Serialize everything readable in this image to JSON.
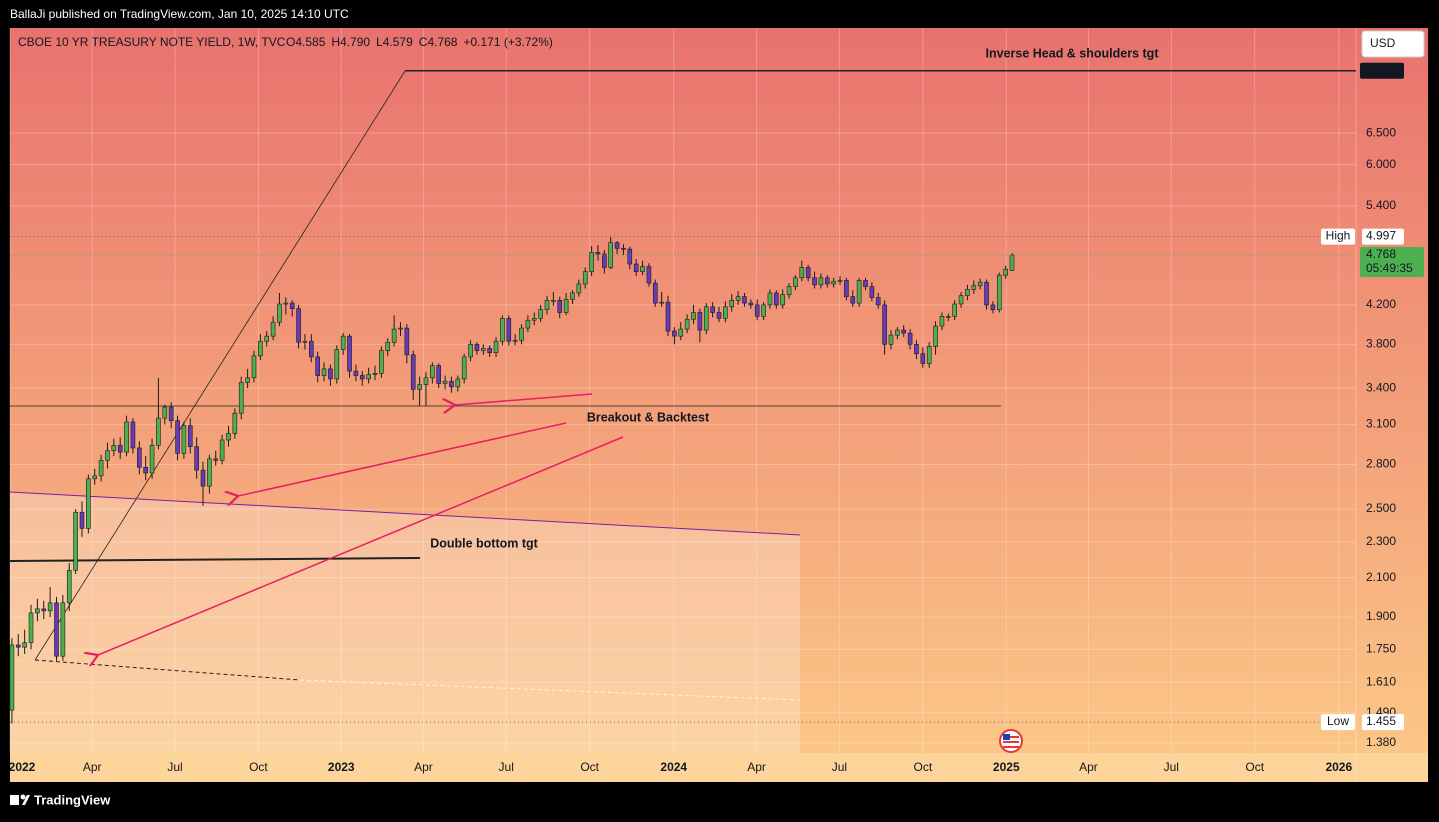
{
  "header": {
    "published": "BallaJi published on TradingView.com, Jan 10, 2025 14:10 UTC"
  },
  "chart_data": {
    "type": "candlestick",
    "title": "CBOE 10 YR TREASURY NOTE YIELD, 1W, TVC",
    "ohlc_text": [
      "O4.585",
      "H4.790",
      "L4.579",
      "C4.768",
      "+0.171 (+3.72%)"
    ],
    "currency": "USD",
    "x": [
      0,
      1,
      2,
      3,
      4,
      5,
      6,
      7,
      8,
      9,
      10,
      11,
      12,
      13,
      14,
      15,
      16,
      17,
      18,
      19,
      20,
      21,
      22,
      23,
      24,
      25,
      26,
      27,
      28,
      29,
      30,
      31,
      32,
      33,
      34,
      35,
      36,
      37,
      38,
      39,
      40,
      41,
      42,
      43,
      44,
      45,
      46,
      47,
      48,
      49,
      50,
      51,
      52,
      53,
      54,
      55,
      56,
      57,
      58,
      59,
      60,
      61,
      62,
      63,
      64,
      65,
      66,
      67,
      68,
      69,
      70,
      71,
      72,
      73,
      74,
      75,
      76,
      77,
      78,
      79,
      80,
      81,
      82,
      83,
      84,
      85,
      86,
      87,
      88,
      89,
      90,
      91,
      92,
      93,
      94,
      95,
      96,
      97,
      98,
      99,
      100,
      101,
      102,
      103,
      104,
      105,
      106,
      107,
      108,
      109,
      110,
      111,
      112,
      113,
      114,
      115,
      116,
      117,
      118,
      119,
      120,
      121,
      122,
      123,
      124,
      125,
      126,
      127,
      128,
      129,
      130,
      131,
      132,
      133,
      134,
      135,
      136,
      137,
      138,
      139,
      140,
      141,
      142,
      143,
      144,
      145,
      146,
      147,
      148,
      149,
      150,
      151,
      152,
      153,
      154,
      155,
      156,
      157
    ],
    "open": [
      1.5,
      1.77,
      1.76,
      1.78,
      1.92,
      1.94,
      1.93,
      1.97,
      1.72,
      1.97,
      2.14,
      2.48,
      2.38,
      2.7,
      2.72,
      2.83,
      2.9,
      2.94,
      2.89,
      3.12,
      2.92,
      2.78,
      2.74,
      2.94,
      3.15,
      3.24,
      3.13,
      2.88,
      3.09,
      2.93,
      2.76,
      2.65,
      2.84,
      2.83,
      2.98,
      3.03,
      3.19,
      3.45,
      3.49,
      3.69,
      3.83,
      3.88,
      4.02,
      4.21,
      4.22,
      4.16,
      3.82,
      3.83,
      3.68,
      3.51,
      3.57,
      3.48,
      3.75,
      3.88,
      3.55,
      3.51,
      3.48,
      3.52,
      3.53,
      3.74,
      3.82,
      3.95,
      3.96,
      3.7,
      3.39,
      3.43,
      3.49,
      3.6,
      3.44,
      3.46,
      3.41,
      3.48,
      3.68,
      3.8,
      3.74,
      3.76,
      3.72,
      3.83,
      4.06,
      3.83,
      3.84,
      3.96,
      4.04,
      4.06,
      4.15,
      4.25,
      4.25,
      4.12,
      4.26,
      4.33,
      4.43,
      4.57,
      4.8,
      4.78,
      4.62,
      4.92,
      4.85,
      4.84,
      4.66,
      4.57,
      4.63,
      4.44,
      4.22,
      4.23,
      3.93,
      3.88,
      3.95,
      4.05,
      4.12,
      3.94,
      4.18,
      4.12,
      4.06,
      4.18,
      4.25,
      4.29,
      4.22,
      4.2,
      4.08,
      4.2,
      4.33,
      4.2,
      4.31,
      4.4,
      4.5,
      4.62,
      4.5,
      4.42,
      4.5,
      4.43,
      4.46,
      4.47,
      4.29,
      4.22,
      4.47,
      4.4,
      4.28,
      4.2,
      3.8,
      3.89,
      3.94,
      3.91,
      3.8,
      3.71,
      3.62,
      3.78,
      3.98,
      4.08,
      4.08,
      4.21,
      4.3,
      4.37,
      4.41,
      4.45,
      4.2,
      4.15,
      4.53,
      4.585
    ],
    "high": [
      1.8,
      1.82,
      1.84,
      1.96,
      1.99,
      1.98,
      2.05,
      2.0,
      2.01,
      2.18,
      2.5,
      2.55,
      2.73,
      2.77,
      2.87,
      2.96,
      2.99,
      3.0,
      3.17,
      3.15,
      2.97,
      2.86,
      2.99,
      3.49,
      3.26,
      3.28,
      3.17,
      3.12,
      3.15,
      3.0,
      2.82,
      2.87,
      2.9,
      3.02,
      3.09,
      3.23,
      3.5,
      3.57,
      3.74,
      3.9,
      3.93,
      4.08,
      4.33,
      4.28,
      4.25,
      4.2,
      3.9,
      3.9,
      3.73,
      3.63,
      3.61,
      3.79,
      3.91,
      3.9,
      3.61,
      3.55,
      3.58,
      3.6,
      3.78,
      3.86,
      4.09,
      4.02,
      4.0,
      3.74,
      3.5,
      3.54,
      3.63,
      3.62,
      3.51,
      3.5,
      3.51,
      3.71,
      3.84,
      3.82,
      3.8,
      3.79,
      3.87,
      4.09,
      4.09,
      3.9,
      4.0,
      4.09,
      4.12,
      4.2,
      4.3,
      4.34,
      4.29,
      4.33,
      4.36,
      4.48,
      4.62,
      4.88,
      4.89,
      4.83,
      4.997,
      4.94,
      4.9,
      4.87,
      4.72,
      4.7,
      4.67,
      4.48,
      4.34,
      4.3,
      3.97,
      4.02,
      4.1,
      4.2,
      4.16,
      4.22,
      4.23,
      4.18,
      4.24,
      4.32,
      4.35,
      4.33,
      4.26,
      4.26,
      4.23,
      4.37,
      4.36,
      4.37,
      4.44,
      4.53,
      4.7,
      4.65,
      4.57,
      4.55,
      4.53,
      4.5,
      4.52,
      4.5,
      4.36,
      4.5,
      4.5,
      4.45,
      4.33,
      4.25,
      3.94,
      3.97,
      3.99,
      3.95,
      3.84,
      3.77,
      3.82,
      4.03,
      4.12,
      4.11,
      4.25,
      4.34,
      4.42,
      4.47,
      4.49,
      4.48,
      4.24,
      4.56,
      4.64,
      4.79
    ],
    "low": [
      1.45,
      1.72,
      1.73,
      1.75,
      1.88,
      1.89,
      1.9,
      1.7,
      1.7,
      1.93,
      2.12,
      2.33,
      2.35,
      2.66,
      2.68,
      2.77,
      2.86,
      2.84,
      2.86,
      2.88,
      2.73,
      2.69,
      2.7,
      2.91,
      3.1,
      3.07,
      2.83,
      2.84,
      2.88,
      2.7,
      2.52,
      2.6,
      2.79,
      2.8,
      2.93,
      2.99,
      3.14,
      3.4,
      3.45,
      3.65,
      3.78,
      3.84,
      3.98,
      4.1,
      4.08,
      3.76,
      3.75,
      3.63,
      3.45,
      3.46,
      3.42,
      3.44,
      3.7,
      3.49,
      3.46,
      3.42,
      3.44,
      3.47,
      3.49,
      3.69,
      3.78,
      3.88,
      3.62,
      3.3,
      3.25,
      3.25,
      3.44,
      3.4,
      3.39,
      3.36,
      3.37,
      3.44,
      3.64,
      3.7,
      3.7,
      3.68,
      3.68,
      3.79,
      3.79,
      3.79,
      3.8,
      3.92,
      3.99,
      4.02,
      4.1,
      4.19,
      4.06,
      4.09,
      4.21,
      4.29,
      4.38,
      4.52,
      4.7,
      4.55,
      4.6,
      4.78,
      4.77,
      4.6,
      4.52,
      4.53,
      4.4,
      4.18,
      4.18,
      3.88,
      3.8,
      3.84,
      3.91,
      4.0,
      3.82,
      3.9,
      4.07,
      4.02,
      4.02,
      4.13,
      4.2,
      4.18,
      4.16,
      4.04,
      4.04,
      4.16,
      4.16,
      4.16,
      4.27,
      4.36,
      4.46,
      4.46,
      4.38,
      4.38,
      4.39,
      4.39,
      4.42,
      4.25,
      4.18,
      4.18,
      4.36,
      4.24,
      4.16,
      3.7,
      3.75,
      3.85,
      3.87,
      3.75,
      3.66,
      3.58,
      3.58,
      3.7,
      3.94,
      4.03,
      4.04,
      4.17,
      4.25,
      4.32,
      4.37,
      4.15,
      4.11,
      4.12,
      4.49,
      4.579
    ],
    "close": [
      1.77,
      1.76,
      1.78,
      1.92,
      1.94,
      1.93,
      1.97,
      1.72,
      1.97,
      2.14,
      2.48,
      2.38,
      2.7,
      2.72,
      2.83,
      2.9,
      2.94,
      2.89,
      3.12,
      2.92,
      2.78,
      2.74,
      2.94,
      3.15,
      3.24,
      3.13,
      2.88,
      3.09,
      2.93,
      2.76,
      2.65,
      2.84,
      2.83,
      2.98,
      3.03,
      3.19,
      3.45,
      3.49,
      3.69,
      3.83,
      3.88,
      4.02,
      4.21,
      4.22,
      4.16,
      3.82,
      3.83,
      3.68,
      3.51,
      3.57,
      3.48,
      3.75,
      3.88,
      3.55,
      3.51,
      3.48,
      3.52,
      3.53,
      3.74,
      3.82,
      3.95,
      3.96,
      3.7,
      3.39,
      3.43,
      3.49,
      3.6,
      3.44,
      3.46,
      3.41,
      3.48,
      3.68,
      3.8,
      3.74,
      3.76,
      3.72,
      3.83,
      4.06,
      3.83,
      3.84,
      3.96,
      4.04,
      4.06,
      4.15,
      4.25,
      4.25,
      4.12,
      4.26,
      4.33,
      4.43,
      4.57,
      4.8,
      4.78,
      4.62,
      4.92,
      4.85,
      4.84,
      4.66,
      4.57,
      4.63,
      4.44,
      4.22,
      4.23,
      3.93,
      3.88,
      3.95,
      4.05,
      4.12,
      3.94,
      4.18,
      4.12,
      4.06,
      4.18,
      4.25,
      4.29,
      4.22,
      4.2,
      4.08,
      4.2,
      4.33,
      4.2,
      4.31,
      4.4,
      4.5,
      4.62,
      4.5,
      4.42,
      4.5,
      4.43,
      4.46,
      4.47,
      4.29,
      4.22,
      4.47,
      4.4,
      4.28,
      4.2,
      3.8,
      3.89,
      3.94,
      3.91,
      3.8,
      3.71,
      3.62,
      3.78,
      3.98,
      4.08,
      4.08,
      4.21,
      4.3,
      4.37,
      4.41,
      4.45,
      4.2,
      4.15,
      4.53,
      4.6,
      4.768
    ],
    "up_color": "#4caf50",
    "down_color": "#673ab7",
    "xlim": [
      -0.3,
      211
    ],
    "xticks": [
      {
        "value": -0.3,
        "label": "2022"
      },
      {
        "value": 12.6,
        "label": "Apr"
      },
      {
        "value": 25.6,
        "label": "Jul"
      },
      {
        "value": 38.7,
        "label": "Oct"
      },
      {
        "value": 51.7,
        "label": "2023"
      },
      {
        "value": 64.6,
        "label": "Apr"
      },
      {
        "value": 77.6,
        "label": "Jul"
      },
      {
        "value": 90.7,
        "label": "Oct"
      },
      {
        "value": 103.9,
        "label": "2024"
      },
      {
        "value": 116.9,
        "label": "Apr"
      },
      {
        "value": 129.9,
        "label": "Jul"
      },
      {
        "value": 143,
        "label": "Oct"
      },
      {
        "value": 156.1,
        "label": "2025"
      },
      {
        "value": 169,
        "label": "Apr"
      },
      {
        "value": 182,
        "label": "Jul"
      },
      {
        "value": 195.1,
        "label": "Oct"
      },
      {
        "value": 208.3,
        "label": "2026"
      }
    ],
    "ylim": [
      1.345,
      8.49
    ],
    "log_scale": true,
    "grid": true,
    "yticks": [
      {
        "value": 1.38,
        "label": "1.380"
      },
      {
        "value": 1.49,
        "label": "1.490"
      },
      {
        "value": 1.61,
        "label": "1.610"
      },
      {
        "value": 1.75,
        "label": "1.750"
      },
      {
        "value": 1.9,
        "label": "1.900"
      },
      {
        "value": 2.1,
        "label": "2.100"
      },
      {
        "value": 2.3,
        "label": "2.300"
      },
      {
        "value": 2.5,
        "label": "2.500"
      },
      {
        "value": 2.8,
        "label": "2.800"
      },
      {
        "value": 3.1,
        "label": "3.100"
      },
      {
        "value": 3.4,
        "label": "3.400"
      },
      {
        "value": 3.8,
        "label": "3.800"
      },
      {
        "value": 4.2,
        "label": "4.200"
      },
      {
        "value": 5.4,
        "label": "5.400"
      },
      {
        "value": 6,
        "label": "6.000"
      },
      {
        "value": 6.5,
        "label": "6.500"
      }
    ],
    "annotations": [
      "Inverse Head & shoulders tgt",
      "Breakout & Backtest",
      "Double bottom tgt"
    ],
    "target": 7.615,
    "high_label": "High",
    "high_value": 4.997,
    "low_label": "Low",
    "low_value": 1.455,
    "last": 4.768,
    "countdown": "05:49:35"
  },
  "footer": {
    "brand": "TradingView"
  }
}
